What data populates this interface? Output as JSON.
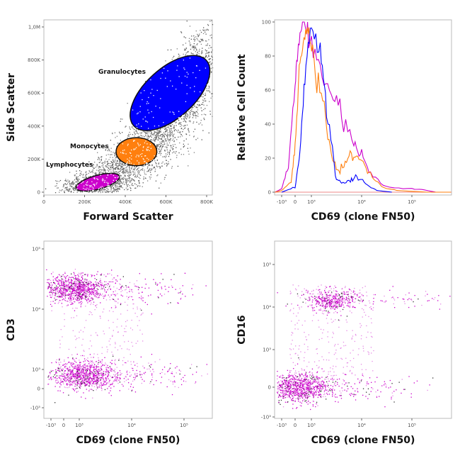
{
  "chart_data": [
    {
      "type": "scatter",
      "xlabel": "Forward Scatter",
      "ylabel": "Side Scatter",
      "xlim": [
        0,
        850000
      ],
      "ylim": [
        0,
        1050000
      ],
      "xticks": [
        {
          "v": 0,
          "label": "0"
        },
        {
          "v": 200000,
          "label": "200K"
        },
        {
          "v": 400000,
          "label": "400K"
        },
        {
          "v": 600000,
          "label": "600K"
        },
        {
          "v": 800000,
          "label": "800K"
        }
      ],
      "yticks": [
        {
          "v": 0,
          "label": "0"
        },
        {
          "v": 200000,
          "label": "200K"
        },
        {
          "v": 400000,
          "label": "400K"
        },
        {
          "v": 600000,
          "label": "600K"
        },
        {
          "v": 800000,
          "label": "800K"
        },
        {
          "v": 1000000,
          "label": "1,0M"
        }
      ],
      "gates": [
        {
          "name": "Lymphocytes",
          "color": "#cc00cc",
          "center": [
            265000,
            60000
          ],
          "radii": [
            110000,
            42000
          ],
          "angle": -15
        },
        {
          "name": "Monocytes",
          "color": "#ff7f0e",
          "center": [
            455000,
            245000
          ],
          "radii": [
            100000,
            85000
          ],
          "angle": 0
        },
        {
          "name": "Granulocytes",
          "color": "#0000ff",
          "center": [
            620000,
            600000
          ],
          "radii": [
            240000,
            150000
          ],
          "angle": -42
        }
      ],
      "background_color": "#808080"
    },
    {
      "type": "line",
      "xlabel": "CD69 (clone FN50)",
      "ylabel": "Relative Cell Count",
      "ylim": [
        0,
        100
      ],
      "xticks": [
        {
          "v": -1000,
          "label": "-10³"
        },
        {
          "v": 0,
          "label": "0"
        },
        {
          "v": 1000,
          "label": "10³"
        },
        {
          "v": 10000,
          "label": "10⁴"
        },
        {
          "v": 100000,
          "label": "10⁵"
        }
      ],
      "yticks": [
        {
          "v": 0,
          "label": "0"
        },
        {
          "v": 20,
          "label": "20"
        },
        {
          "v": 40,
          "label": "40"
        },
        {
          "v": 60,
          "label": "60"
        },
        {
          "v": 80,
          "label": "80"
        },
        {
          "v": 100,
          "label": "100"
        }
      ],
      "series": [
        {
          "color": "#cc00cc",
          "points": [
            [
              -1500,
              0
            ],
            [
              -1000,
              2
            ],
            [
              -500,
              15
            ],
            [
              0,
              62
            ],
            [
              200,
              88
            ],
            [
              500,
              100
            ],
            [
              900,
              92
            ],
            [
              1500,
              72
            ],
            [
              2500,
              58
            ],
            [
              4000,
              45
            ],
            [
              7000,
              30
            ],
            [
              10000,
              22
            ],
            [
              15000,
              11
            ],
            [
              30000,
              3
            ],
            [
              100000,
              2
            ],
            [
              200000,
              1
            ],
            [
              300000,
              0
            ]
          ]
        },
        {
          "color": "#ff7f0e",
          "points": [
            [
              -1500,
              0
            ],
            [
              -1000,
              1
            ],
            [
              -300,
              6
            ],
            [
              0,
              28
            ],
            [
              300,
              75
            ],
            [
              600,
              90
            ],
            [
              900,
              95
            ],
            [
              1200,
              72
            ],
            [
              1800,
              45
            ],
            [
              2500,
              22
            ],
            [
              3500,
              12
            ],
            [
              5000,
              18
            ],
            [
              7000,
              22
            ],
            [
              10000,
              18
            ],
            [
              15000,
              10
            ],
            [
              25000,
              3
            ],
            [
              50000,
              1
            ],
            [
              200000,
              0
            ],
            [
              600000,
              0
            ]
          ]
        },
        {
          "color": "#0000ff",
          "points": [
            [
              -1000,
              0
            ],
            [
              0,
              3
            ],
            [
              300,
              22
            ],
            [
              600,
              70
            ],
            [
              1000,
              98
            ],
            [
              1500,
              85
            ],
            [
              2000,
              52
            ],
            [
              3000,
              10
            ],
            [
              4000,
              5
            ],
            [
              6000,
              7
            ],
            [
              8000,
              9
            ],
            [
              12000,
              5
            ],
            [
              20000,
              1
            ],
            [
              40000,
              0
            ]
          ]
        }
      ]
    },
    {
      "type": "scatter",
      "xlabel": "CD69 (clone FN50)",
      "ylabel": "CD3",
      "color": "#cc00cc",
      "xticks": [
        {
          "v": -1000,
          "label": "-10³"
        },
        {
          "v": 0,
          "label": "0"
        },
        {
          "v": 1000,
          "label": "10³"
        },
        {
          "v": 10000,
          "label": "10⁴"
        },
        {
          "v": 100000,
          "label": "10⁵"
        }
      ],
      "yticks": [
        {
          "v": -1000,
          "label": "-10³"
        },
        {
          "v": 0,
          "label": "0"
        },
        {
          "v": 1000,
          "label": "10³"
        },
        {
          "v": 10000,
          "label": "10⁴"
        },
        {
          "v": 100000,
          "label": "10⁵"
        }
      ],
      "populations": [
        {
          "cd69": 700,
          "marker": 22000
        },
        {
          "cd69": 1200,
          "marker": 700
        }
      ]
    },
    {
      "type": "scatter",
      "xlabel": "CD69 (clone FN50)",
      "ylabel": "CD16",
      "color": "#cc00cc",
      "xticks": [
        {
          "v": -1000,
          "label": "-10³"
        },
        {
          "v": 0,
          "label": "0"
        },
        {
          "v": 1000,
          "label": "10³"
        },
        {
          "v": 10000,
          "label": "10⁴"
        },
        {
          "v": 100000,
          "label": "10⁵"
        }
      ],
      "yticks": [
        {
          "v": -1000,
          "label": "-10³"
        },
        {
          "v": 0,
          "label": "0"
        },
        {
          "v": 1000,
          "label": "10³"
        },
        {
          "v": 10000,
          "label": "10⁴"
        },
        {
          "v": 100000,
          "label": "10⁵"
        }
      ],
      "populations": [
        {
          "cd69": 2500,
          "marker": 15000
        },
        {
          "cd69": 200,
          "marker": 0
        }
      ]
    }
  ]
}
